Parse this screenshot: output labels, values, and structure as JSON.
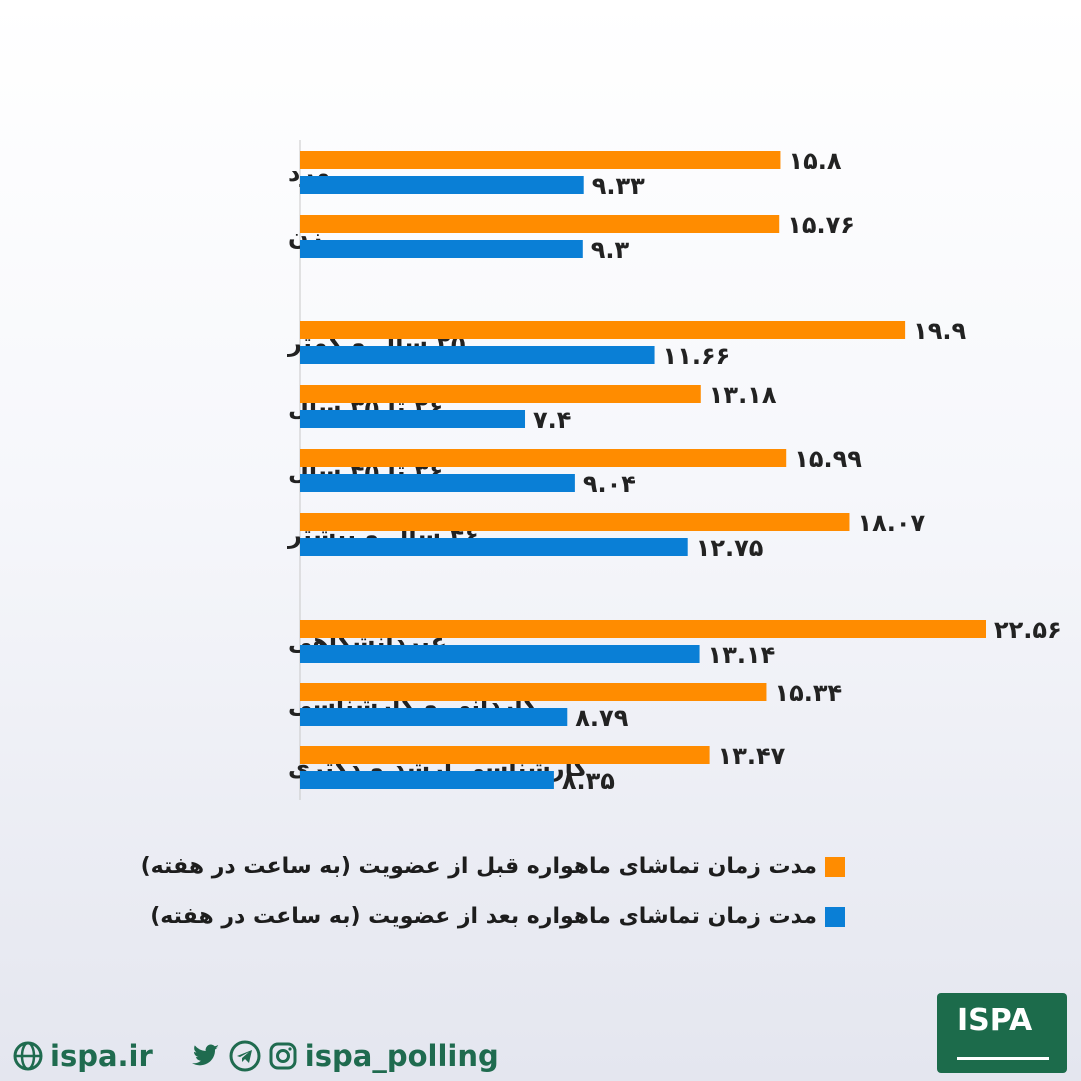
{
  "chart_data": {
    "type": "bar",
    "orientation": "horizontal",
    "categories": [
      "مرد",
      "زن",
      "۲۵ سال و کمتر",
      "۲۶ تا ۳۵ سال",
      "۳۶ تا ۴۵ سال",
      "۴۶ سال و بیشتر",
      "غیردانشگاهی",
      "کاردانی و کارشناسی",
      "کارشناسی ارشد و دکتری"
    ],
    "series": [
      {
        "name": "مدت زمان تماشای ماهواره قبل از عضویت (به ساعت در هفته)",
        "color": "#ff8c00",
        "values": [
          15.8,
          15.76,
          19.9,
          13.18,
          15.99,
          18.07,
          22.56,
          15.34,
          13.47
        ],
        "labels": [
          "۱۵.۸",
          "۱۵.۷۶",
          "۱۹.۹",
          "۱۳.۱۸",
          "۱۵.۹۹",
          "۱۸.۰۷",
          "۲۲.۵۶",
          "۱۵.۳۴",
          "۱۳.۴۷"
        ]
      },
      {
        "name": "مدت زمان تماشای ماهواره بعد از عضویت (به ساعت در هفته)",
        "color": "#0a7fd6",
        "values": [
          9.33,
          9.3,
          11.66,
          7.4,
          9.04,
          12.75,
          13.14,
          8.79,
          8.35
        ],
        "labels": [
          "۹.۳۳",
          "۹.۳",
          "۱۱.۶۶",
          "۷.۴",
          "۹.۰۴",
          "۱۲.۷۵",
          "۱۳.۱۴",
          "۸.۷۹",
          "۸.۳۵"
        ]
      }
    ],
    "xlim": [
      0,
      22.56
    ],
    "grid": false,
    "legend_position": "bottom"
  },
  "footer": {
    "website": "ispa.ir",
    "handle": "ispa_polling",
    "icons": [
      "globe-icon",
      "twitter-icon",
      "telegram-icon",
      "instagram-icon"
    ]
  },
  "logo": {
    "text": "ISPA",
    "color": "#1c6b4b"
  }
}
